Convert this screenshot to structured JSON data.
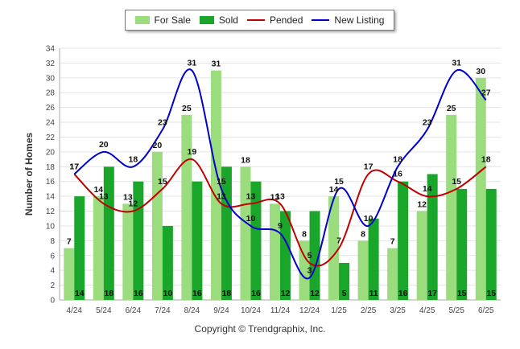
{
  "chart_data": {
    "type": "bar",
    "categories": [
      "4/24",
      "5/24",
      "6/24",
      "7/24",
      "8/24",
      "9/24",
      "10/24",
      "11/24",
      "12/24",
      "1/25",
      "2/25",
      "3/25",
      "4/25",
      "5/25",
      "6/25"
    ],
    "series": [
      {
        "name": "For Sale",
        "kind": "bar",
        "color": "#9bdc7e",
        "values": [
          7,
          14,
          13,
          20,
          25,
          31,
          18,
          13,
          8,
          14,
          8,
          7,
          12,
          25,
          30
        ]
      },
      {
        "name": "Sold",
        "kind": "bar",
        "color": "#1aa52b",
        "values": [
          14,
          18,
          16,
          10,
          16,
          18,
          16,
          12,
          12,
          5,
          11,
          16,
          17,
          15,
          15
        ]
      },
      {
        "name": "Pended",
        "kind": "line",
        "color": "#c00000",
        "values": [
          17,
          13,
          12,
          15,
          19,
          13,
          13,
          13,
          5,
          7,
          17,
          16,
          14,
          15,
          18
        ]
      },
      {
        "name": "New Listing",
        "kind": "line",
        "color": "#0000cc",
        "values": [
          17,
          20,
          18,
          23,
          31,
          15,
          10,
          9,
          3,
          15,
          10,
          18,
          23,
          31,
          27
        ]
      }
    ],
    "ylabel": "Number of Homes",
    "xlabel": "",
    "ylim": [
      0,
      34
    ],
    "yticks": [
      0,
      2,
      4,
      6,
      8,
      10,
      12,
      14,
      16,
      18,
      20,
      22,
      24,
      26,
      28,
      30,
      32,
      34
    ],
    "grid": true,
    "legend_position": "top"
  },
  "footer": {
    "copyright": "Copyright © Trendgraphix, Inc."
  }
}
